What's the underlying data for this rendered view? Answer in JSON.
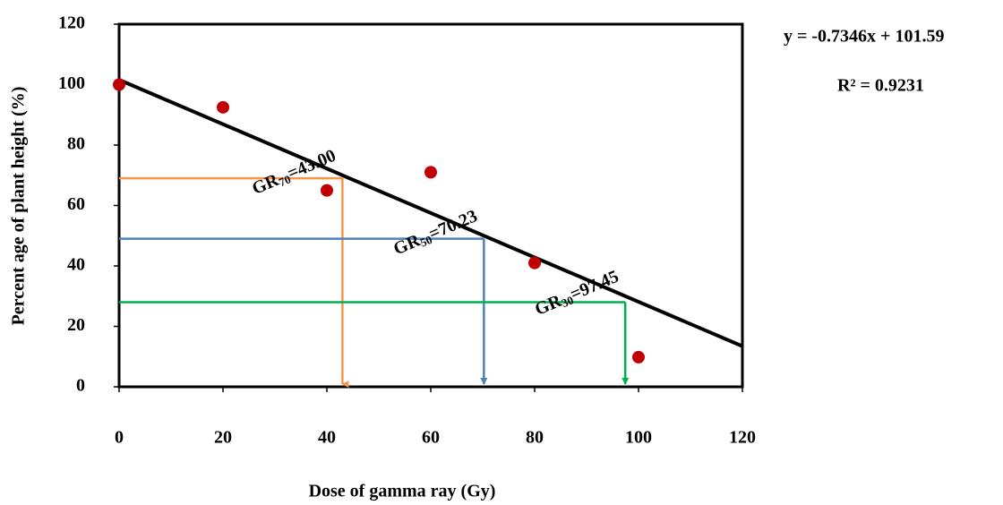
{
  "chart_data": {
    "type": "scatter",
    "x_label": "Dose of gamma ray (Gy)",
    "y_label": "Percent age of plant height  (%)",
    "x": [
      0,
      20,
      40,
      60,
      80,
      100
    ],
    "values": [
      100,
      92.5,
      65,
      71,
      41,
      9.8
    ],
    "color": "#c00000",
    "xlim": [
      0,
      120
    ],
    "xticks": [
      0,
      20,
      40,
      60,
      80,
      100,
      120
    ],
    "ylim": [
      0,
      120
    ],
    "yticks": [
      0,
      20,
      40,
      60,
      80,
      100,
      120
    ],
    "grid": false,
    "trendline": {
      "equation": "y = -0.7346x + 101.59",
      "r2_label": "R² = 0.9231",
      "slope": -0.7346,
      "intercept": 101.59,
      "color": "#000000"
    },
    "annotations": [
      {
        "label": "GR",
        "subscript": "70",
        "value_text": "=43.00",
        "x": 43.0,
        "y": 69,
        "color": "#f79646"
      },
      {
        "label": "GR",
        "subscript": "50",
        "value_text": "=70.23",
        "x": 70.23,
        "y": 49,
        "color": "#4f81bd"
      },
      {
        "label": "GR",
        "subscript": "30",
        "value_text": "=97.45",
        "x": 97.45,
        "y": 28,
        "color": "#00b050"
      }
    ]
  }
}
